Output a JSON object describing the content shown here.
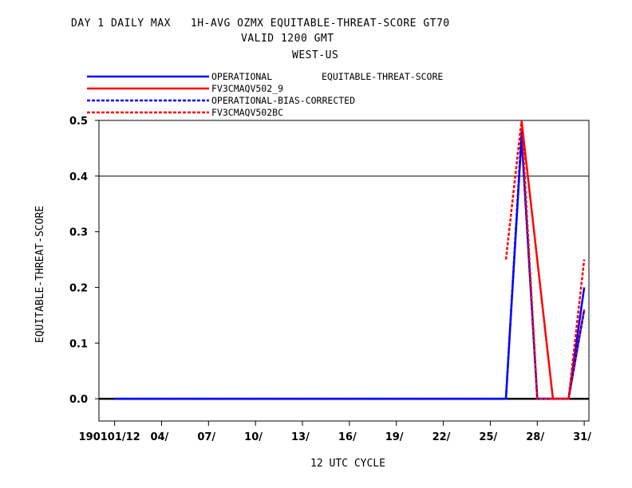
{
  "chart_data": {
    "type": "line",
    "title_lines": [
      "DAY 1 DAILY MAX   1H-AVG OZMX EQUITABLE-THREAT-SCORE GT70",
      "VALID 1200 GMT",
      "WEST-US"
    ],
    "xlabel": "12 UTC CYCLE",
    "ylabel": "EQUITABLE-THREAT-SCORE",
    "legend_title": "EQUITABLE-THREAT-SCORE",
    "ylim": [
      -0.04,
      0.5
    ],
    "xlim": [
      0.0,
      31.3
    ],
    "y_ticks": [
      0.0,
      0.1,
      0.2,
      0.3,
      0.4,
      0.5
    ],
    "y_tick_labels": [
      "0.0",
      "0.1",
      "0.2",
      "0.3",
      "0.4",
      "0.5"
    ],
    "x_ticks": [
      1,
      4,
      7,
      10,
      13,
      16,
      19,
      22,
      25,
      28,
      31
    ],
    "x_tick_labels": [
      "190101/12",
      "04/",
      "07/",
      "10/",
      "13/",
      "16/",
      "19/",
      "22/",
      "25/",
      "28/",
      "31/"
    ],
    "hlines": [
      0.4,
      0.0
    ],
    "series": [
      {
        "name": "OPERATIONAL",
        "color": "#0000ff",
        "dash": "solid",
        "points": [
          [
            1,
            0.0
          ],
          [
            2,
            0.0
          ],
          [
            26,
            0.0
          ],
          [
            27,
            0.47
          ],
          [
            28,
            0.0
          ],
          [
            30,
            0.0
          ],
          [
            31,
            0.2
          ]
        ]
      },
      {
        "name": "FV3CMAQV502_9",
        "color": "#ff0000",
        "dash": "solid",
        "points": [
          [
            27,
            0.5
          ],
          [
            29,
            0.0
          ],
          [
            30,
            0.0
          ],
          [
            31,
            0.16
          ]
        ]
      },
      {
        "name": "OPERATIONAL-BIAS-CORRECTED",
        "color": "#0000ff",
        "dash": "dashed",
        "points": [
          [
            1,
            0.0
          ],
          [
            2,
            0.0
          ],
          [
            26,
            0.0
          ],
          [
            27,
            0.48
          ],
          [
            28,
            0.0
          ],
          [
            30,
            0.0
          ],
          [
            31,
            0.16
          ]
        ]
      },
      {
        "name": "FV3CMAQV502BC",
        "color": "#ff0000",
        "dash": "dashed",
        "points": [
          [
            26,
            0.25
          ],
          [
            27,
            0.5
          ],
          [
            28,
            0.0
          ],
          [
            30,
            0.0
          ],
          [
            31,
            0.25
          ]
        ]
      }
    ]
  }
}
